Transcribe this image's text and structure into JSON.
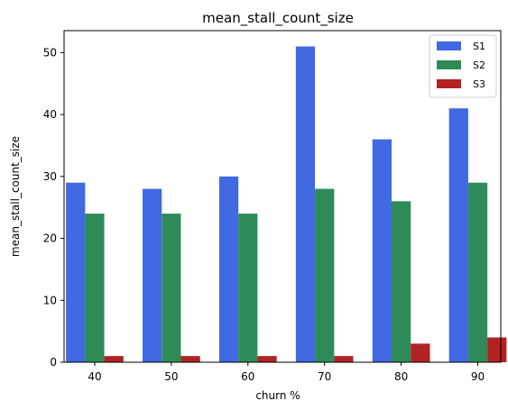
{
  "chart_data": {
    "type": "bar",
    "title": "mean_stall_count_size",
    "xlabel": "churn %",
    "ylabel": "mean_stall_count_size",
    "categories": [
      "40",
      "50",
      "60",
      "70",
      "80",
      "90"
    ],
    "series": [
      {
        "name": "S1",
        "color": "#4169e1",
        "values": [
          29,
          28,
          30,
          51,
          36,
          41
        ]
      },
      {
        "name": "S2",
        "color": "#2e8b57",
        "values": [
          24,
          24,
          24,
          28,
          26,
          29
        ]
      },
      {
        "name": "S3",
        "color": "#b22222",
        "values": [
          1,
          1,
          1,
          1,
          3,
          4
        ]
      }
    ],
    "ylim": [
      0,
      53.55
    ],
    "yticks": [
      0,
      10,
      20,
      30,
      40,
      50
    ],
    "grid": false,
    "legend_position": "top-right"
  }
}
